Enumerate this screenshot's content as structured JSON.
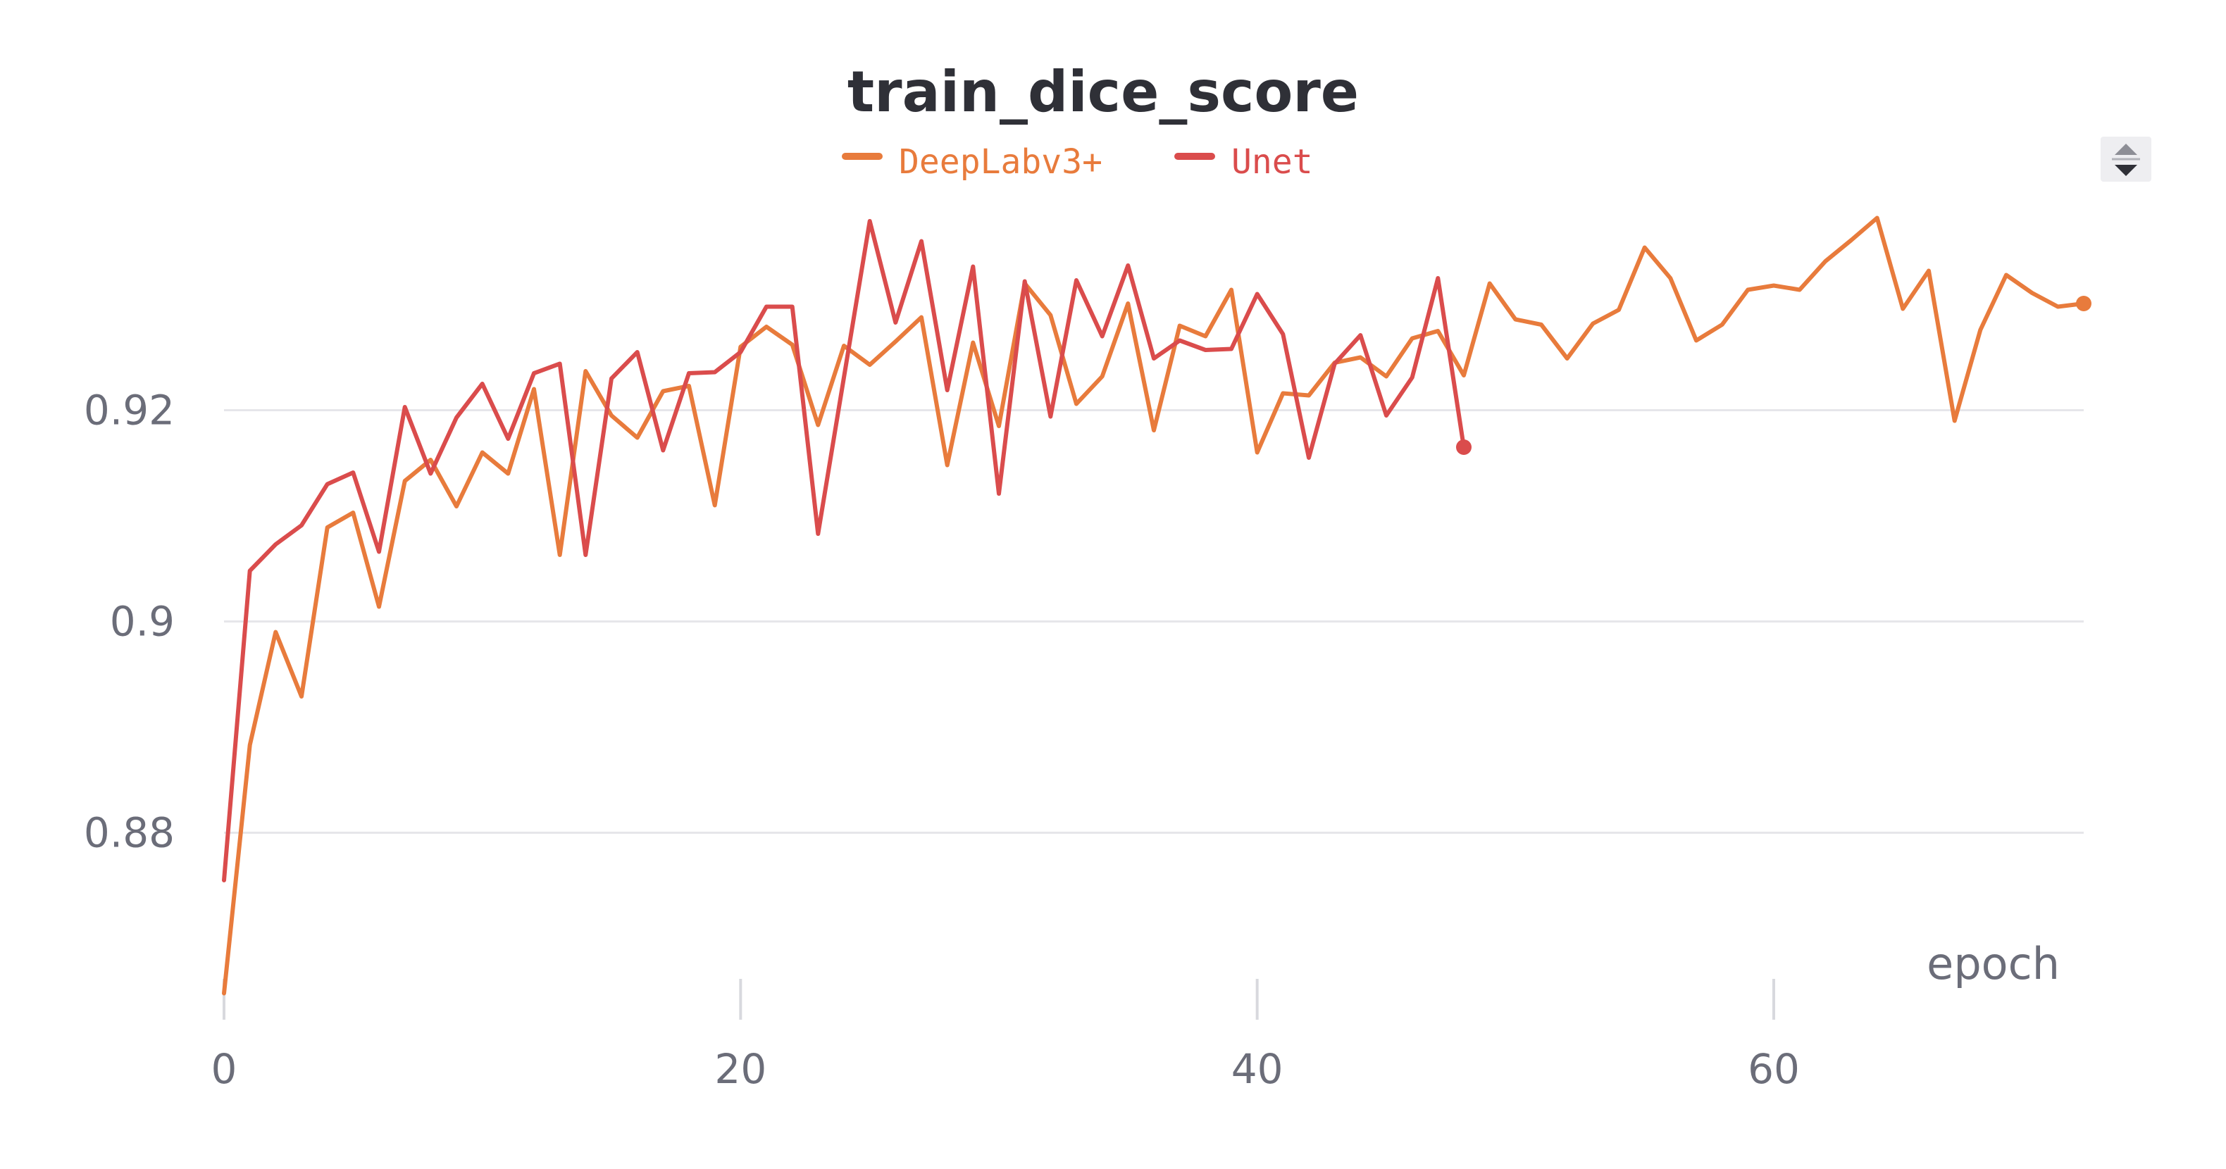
{
  "chart_data": {
    "type": "line",
    "title": "train_dice_score",
    "xlabel": "epoch",
    "ylabel": "",
    "xlim": [
      0,
      72
    ],
    "ylim": [
      0.8635,
      0.9415
    ],
    "x_ticks": [
      0,
      20,
      40,
      60
    ],
    "y_ticks": [
      0.88,
      0.9,
      0.92
    ],
    "x_tick_labels": [
      "0",
      "20",
      "40",
      "60"
    ],
    "y_tick_labels": [
      "0.88",
      "0.9",
      "0.92"
    ],
    "grid": true,
    "legend_position": "top-center",
    "series": [
      {
        "name": "DeepLabv3+",
        "color": "#e87b3c",
        "x": [
          0,
          1,
          2,
          3,
          4,
          5,
          6,
          7,
          8,
          9,
          10,
          11,
          12,
          13,
          14,
          15,
          16,
          17,
          18,
          19,
          20,
          21,
          22,
          23,
          24,
          25,
          26,
          27,
          28,
          29,
          30,
          31,
          32,
          33,
          34,
          35,
          36,
          37,
          38,
          39,
          40,
          41,
          42,
          43,
          44,
          45,
          46,
          47,
          48,
          49,
          50,
          51,
          52,
          53,
          54,
          55,
          56,
          57,
          58,
          59,
          60,
          61,
          62,
          63,
          64,
          65,
          66,
          67,
          68,
          69,
          70,
          71,
          72
        ],
        "values": [
          0.8648,
          0.8883,
          0.899,
          0.8929,
          0.9089,
          0.9103,
          0.9014,
          0.9133,
          0.9153,
          0.9109,
          0.916,
          0.914,
          0.922,
          0.9063,
          0.9237,
          0.9195,
          0.9174,
          0.9218,
          0.9223,
          0.911,
          0.926,
          0.9279,
          0.9262,
          0.9186,
          0.9261,
          0.9243,
          0.9265,
          0.9288,
          0.9148,
          0.9264,
          0.9185,
          0.932,
          0.929,
          0.9206,
          0.9232,
          0.9301,
          0.9181,
          0.928,
          0.927,
          0.9314,
          0.916,
          0.9216,
          0.9214,
          0.9245,
          0.925,
          0.9232,
          0.9268,
          0.9275,
          0.9233,
          0.932,
          0.9286,
          0.9281,
          0.9249,
          0.9282,
          0.9295,
          0.9354,
          0.9325,
          0.9266,
          0.9281,
          0.9314,
          0.9318,
          0.9314,
          0.9341,
          0.9361,
          0.9382,
          0.9296,
          0.9332,
          0.919,
          0.9276,
          0.9328,
          0.9311,
          0.9298,
          0.9301
        ]
      },
      {
        "name": "Unet",
        "color": "#da4c4c",
        "x": [
          0,
          1,
          2,
          3,
          4,
          5,
          6,
          7,
          8,
          9,
          10,
          11,
          12,
          13,
          14,
          15,
          16,
          17,
          18,
          19,
          20,
          21,
          22,
          23,
          24,
          25,
          26,
          27,
          28,
          29,
          30,
          31,
          32,
          33,
          34,
          35,
          36,
          37,
          38,
          39,
          40,
          41,
          42,
          43,
          44,
          45,
          46,
          47,
          48
        ],
        "values": [
          0.8755,
          0.9048,
          0.9073,
          0.9091,
          0.913,
          0.9141,
          0.9066,
          0.9203,
          0.914,
          0.9193,
          0.9225,
          0.9173,
          0.9235,
          0.9244,
          0.9063,
          0.923,
          0.9255,
          0.9162,
          0.9235,
          0.9236,
          0.9255,
          0.9298,
          0.9298,
          0.9083,
          0.9231,
          0.9379,
          0.9283,
          0.936,
          0.9219,
          0.9336,
          0.9121,
          0.9322,
          0.9194,
          0.9323,
          0.927,
          0.9337,
          0.9249,
          0.9266,
          0.9257,
          0.9258,
          0.931,
          0.9272,
          0.9155,
          0.9244,
          0.9271,
          0.9195,
          0.9231,
          0.9325,
          0.9165
        ]
      }
    ]
  },
  "scroll_control": {
    "up_icon": "triangle-up-icon",
    "down_icon": "triangle-down-icon"
  }
}
